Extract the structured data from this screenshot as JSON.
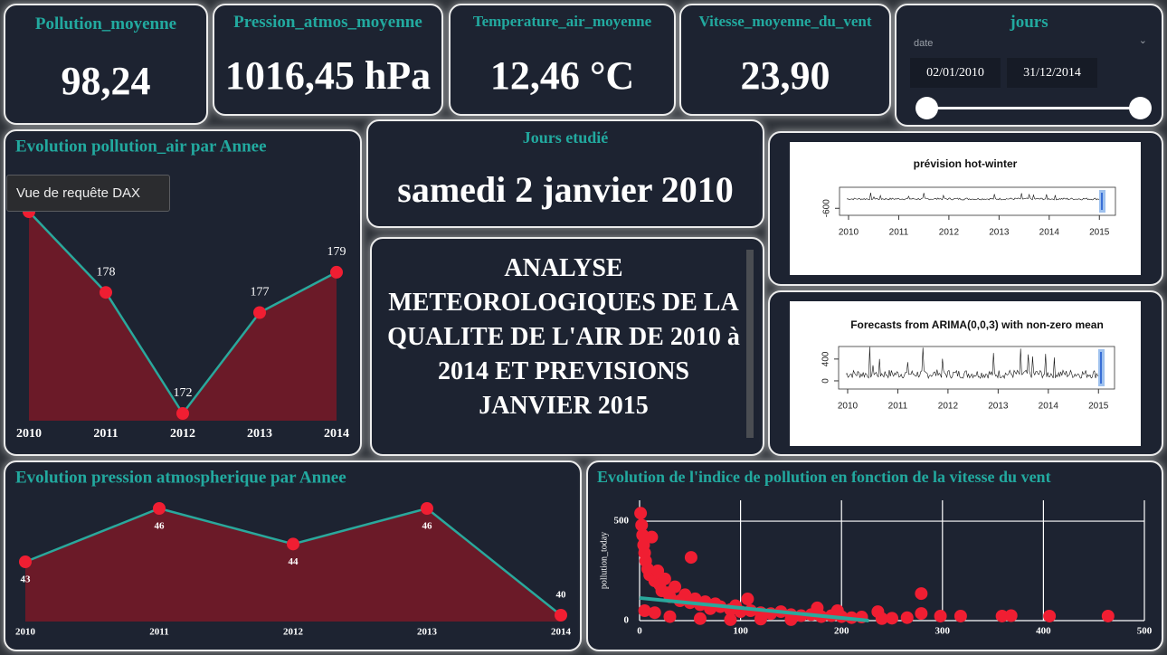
{
  "cards": [
    {
      "title": "Pollution_moyenne",
      "value": "98,24"
    },
    {
      "title": "Pression_atmos_moyenne",
      "value": "1016,45 hPa"
    },
    {
      "title": "Temperature_air_moyenne",
      "value": "12,46 °C"
    },
    {
      "title": "Vitesse_moyenne_du_vent",
      "value": "23,90"
    }
  ],
  "slicer": {
    "title": "jours",
    "field": "date",
    "start": "02/01/2010",
    "end": "31/12/2014"
  },
  "day_card": {
    "title": "Jours etudié",
    "value": "samedi 2 janvier 2010"
  },
  "text_box": {
    "text": "ANALYSE METEOROLOGIQUES DE LA QUALITE DE L'AIR DE 2010 à 2014 ET PREVISIONS JANVIER 2015"
  },
  "tooltip": "Vue de requête DAX",
  "chart_data": [
    {
      "type": "area",
      "title": "Evolution pollution_air par Annee",
      "categories": [
        "2010",
        "2011",
        "2012",
        "2013",
        "2014"
      ],
      "values": [
        182,
        178,
        172,
        177,
        179
      ],
      "line_color": "#2aa89c",
      "fill_color": "#6b1a28",
      "marker_color": "#f01e32"
    },
    {
      "type": "area",
      "title": "Evolution pression atmospherique par Annee",
      "categories": [
        "2010",
        "2011",
        "2012",
        "2013",
        "2014"
      ],
      "values": [
        43,
        46,
        44,
        46,
        40
      ],
      "line_color": "#2aa89c",
      "fill_color": "#6b1a28",
      "marker_color": "#f01e32"
    },
    {
      "type": "scatter",
      "title": "Evolution de l'indice de pollution en fonction de la vitesse du vent",
      "y_label": "pollution_today",
      "x": [
        1,
        2,
        3,
        4,
        5,
        6,
        8,
        10,
        12,
        15,
        18,
        20,
        22,
        25,
        28,
        30,
        35,
        40,
        45,
        50,
        51,
        55,
        60,
        65,
        70,
        75,
        80,
        90,
        95,
        100,
        107,
        110,
        120,
        130,
        140,
        150,
        160,
        170,
        176,
        180,
        190,
        196,
        200,
        210,
        220,
        236,
        240,
        250,
        265,
        279,
        279,
        298,
        318,
        359,
        368,
        406,
        464,
        5,
        15,
        30,
        60,
        90,
        120,
        150
      ],
      "values": [
        540,
        480,
        430,
        380,
        340,
        300,
        260,
        230,
        420,
        200,
        250,
        180,
        150,
        210,
        140,
        120,
        170,
        100,
        130,
        90,
        318,
        110,
        80,
        95,
        60,
        85,
        70,
        55,
        75,
        45,
        109,
        50,
        40,
        35,
        45,
        30,
        25,
        30,
        64,
        20,
        25,
        50,
        20,
        15,
        18,
        45,
        10,
        12,
        15,
        136,
        36,
        23,
        23,
        23,
        25,
        23,
        23,
        50,
        40,
        20,
        10,
        5,
        8,
        5
      ],
      "color": "#f01e32",
      "trend": {
        "x": [
          0,
          227
        ],
        "values": [
          114,
          0
        ],
        "color": "#2aa89c"
      },
      "xlim": [
        0,
        500
      ],
      "ylim": [
        0,
        605
      ],
      "xticks": [
        0,
        100,
        200,
        300,
        400,
        500
      ],
      "yticks": [
        0,
        500
      ],
      "grid": true
    },
    {
      "type": "plot-image",
      "title": "prévision hot-winter",
      "xlim": [
        2009.82,
        2015.32
      ],
      "ylim": [
        -700,
        -300
      ],
      "xticks": [
        2010,
        2011,
        2012,
        2013,
        2014,
        2015
      ],
      "yticks": [
        -600
      ]
    },
    {
      "type": "plot-image",
      "title": "Forecasts from ARIMA(0,0,3) with non-zero mean",
      "xlim": [
        2009.82,
        2015.32
      ],
      "ylim": [
        -150,
        630
      ],
      "xticks": [
        2010,
        2011,
        2012,
        2013,
        2014,
        2015
      ],
      "yticks": [
        0,
        400
      ]
    }
  ]
}
